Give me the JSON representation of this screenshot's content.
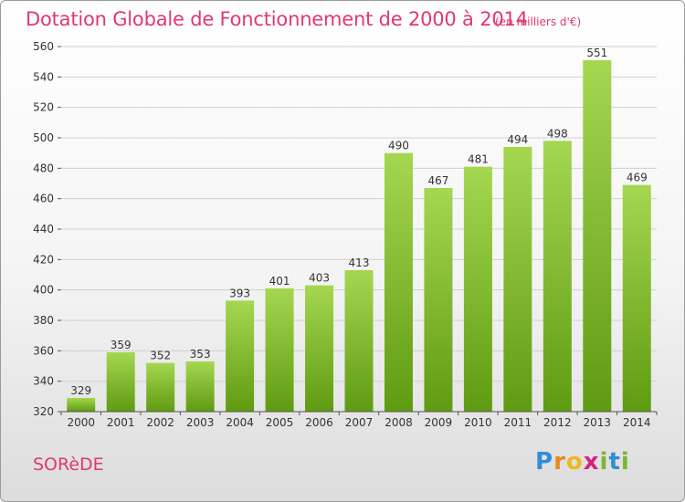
{
  "header": {
    "title": "Dotation Globale de Fonctionnement de 2000 à 2014",
    "subtitle": "(en milliers d'€)"
  },
  "footer": {
    "town": "SORèDE",
    "logo_letters": [
      "P",
      "r",
      "o",
      "x",
      "i",
      "t",
      "i"
    ],
    "logo_colors": [
      "#2f8fd6",
      "#e8891d",
      "#f0b81c",
      "#d8237a",
      "#7ab631",
      "#2f8fd6",
      "#7ab631"
    ]
  },
  "colors": {
    "bar_top": "#a5d750",
    "bar_bottom": "#5f9b11",
    "grid": "#d0d0d0",
    "accent": "#e2386f"
  },
  "chart_data": {
    "type": "bar",
    "title": "Dotation Globale de Fonctionnement de 2000 à 2014",
    "subtitle": "(en milliers d'€)",
    "categories": [
      "2000",
      "2001",
      "2002",
      "2003",
      "2004",
      "2005",
      "2006",
      "2007",
      "2008",
      "2009",
      "2010",
      "2011",
      "2012",
      "2013",
      "2014"
    ],
    "values": [
      329,
      359,
      352,
      353,
      393,
      401,
      403,
      413,
      490,
      467,
      481,
      494,
      498,
      551,
      469
    ],
    "ylim": [
      320,
      560
    ],
    "yticks": [
      320,
      340,
      360,
      380,
      400,
      420,
      440,
      460,
      480,
      500,
      520,
      540,
      560
    ],
    "grid": true
  }
}
